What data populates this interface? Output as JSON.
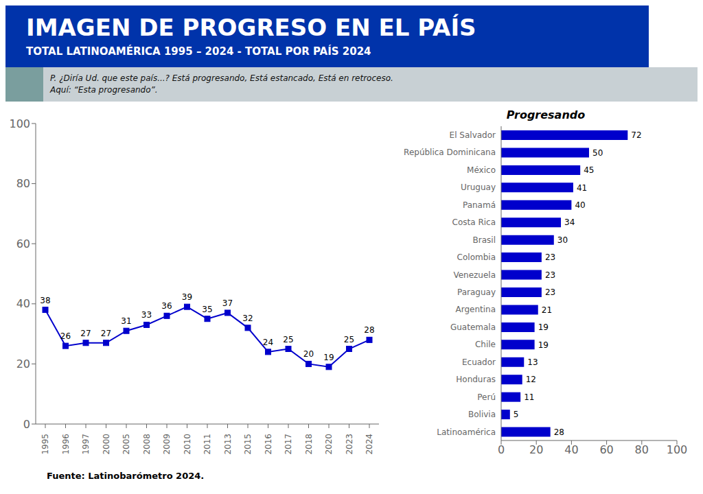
{
  "title": "IMAGEN DE PROGRESO EN EL PAÍS",
  "subtitle": "TOTAL LATINOAMÉRICA 1995 – 2024 - TOTAL POR PAÍS 2024",
  "annotations": [
    "P. ¿Diría Ud. que este país...? Está progresando, Está estancado, Está en retroceso.\nAquí: “Esta progresando”.",
    "Fuente: Latinobarómetro 2024."
  ],
  "chart_data": [
    {
      "type": "line",
      "categories": [
        1995,
        1996,
        1997,
        2000,
        2005,
        2008,
        2009,
        2010,
        2011,
        2013,
        2015,
        2016,
        2017,
        2018,
        2020,
        2023,
        2024
      ],
      "values": [
        38,
        26,
        27,
        27,
        31,
        33,
        36,
        39,
        35,
        37,
        32,
        24,
        25,
        20,
        19,
        25,
        28
      ],
      "color": "#0000CC",
      "marker": "square",
      "ylim": [
        0,
        100
      ],
      "yticks": [
        0,
        20,
        40,
        60,
        80,
        100
      ],
      "data_labels": true,
      "grid": false
    },
    {
      "type": "bar",
      "title": "Progresando",
      "orientation": "horizontal",
      "categories": [
        "El Salvador",
        "República Dominicana",
        "México",
        "Uruguay",
        "Panamá",
        "Costa Rica",
        "Brasil",
        "Colombia",
        "Venezuela",
        "Paraguay",
        "Argentina",
        "Guatemala",
        "Chile",
        "Ecuador",
        "Honduras",
        "Perú",
        "Bolivia",
        "Latinoamérica"
      ],
      "values": [
        72,
        50,
        45,
        41,
        40,
        34,
        30,
        23,
        23,
        23,
        21,
        19,
        19,
        13,
        12,
        11,
        5,
        28
      ],
      "color": "#0000CC",
      "xlim": [
        0,
        100
      ],
      "xticks": [
        0,
        20,
        40,
        60,
        80,
        100
      ],
      "data_labels": true,
      "grid": false
    }
  ]
}
